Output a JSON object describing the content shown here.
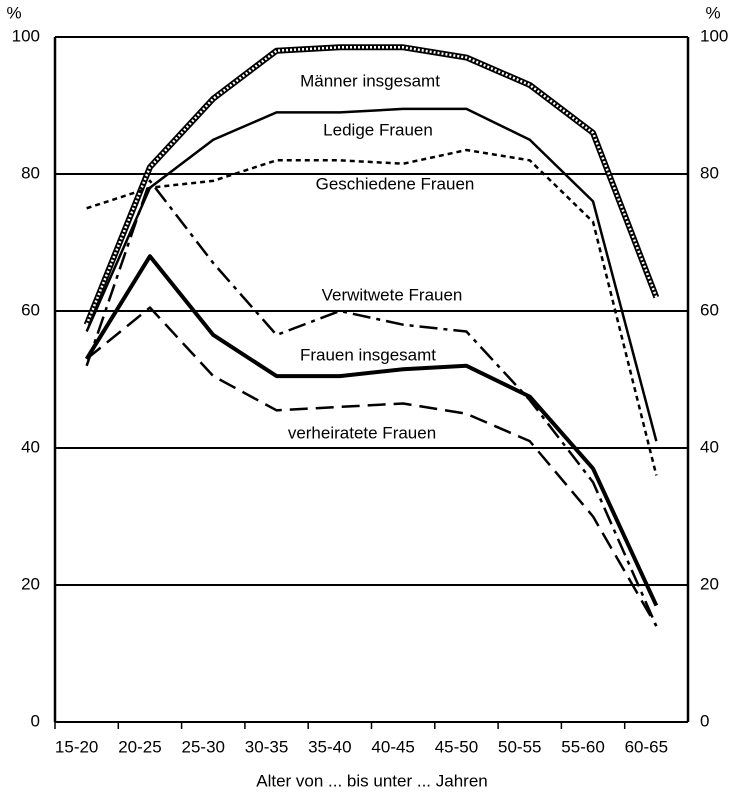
{
  "chart_data": {
    "type": "line",
    "categories": [
      "15-20",
      "20-25",
      "25-30",
      "30-35",
      "35-40",
      "40-45",
      "45-50",
      "50-55",
      "55-60",
      "60-65"
    ],
    "series": [
      {
        "name": "Männer insgesamt",
        "color": "#000000",
        "style": "double",
        "values": [
          58,
          81,
          91,
          98,
          98.5,
          98.5,
          97,
          93,
          86,
          62
        ]
      },
      {
        "name": "Ledige Frauen",
        "color": "#000000",
        "style": "solid",
        "values": [
          57,
          78,
          85,
          89,
          89,
          89.5,
          89.5,
          85,
          76,
          41
        ]
      },
      {
        "name": "Geschiedene Frauen",
        "color": "#000000",
        "style": "short-dash",
        "values": [
          75,
          78,
          79,
          82,
          82,
          81.5,
          83.5,
          82,
          73,
          36
        ]
      },
      {
        "name": "Verwitwete Frauen",
        "color": "#000000",
        "style": "dash-dot",
        "values": [
          52,
          79,
          67,
          56.5,
          60,
          58,
          57,
          47,
          35,
          14
        ]
      },
      {
        "name": "Frauen insgesamt",
        "color": "#000000",
        "style": "thick",
        "values": [
          53,
          68,
          56.5,
          50.5,
          50.5,
          51.5,
          52,
          47.5,
          37,
          17
        ]
      },
      {
        "name": "verheiratete Frauen",
        "color": "#000000",
        "style": "long-dash",
        "values": [
          53,
          60.5,
          50.5,
          45.5,
          46,
          46.5,
          45,
          41,
          30,
          14
        ]
      }
    ],
    "ylabel": "%",
    "y2label": "%",
    "xlabel": "Alter von ... bis unter ... Jahren",
    "ylim": [
      0,
      100
    ],
    "yticks": [
      0,
      20,
      40,
      60,
      80,
      100
    ],
    "y2lim": [
      0,
      100
    ],
    "y2ticks": [
      0,
      20,
      40,
      60,
      80,
      100
    ],
    "grid": true
  }
}
